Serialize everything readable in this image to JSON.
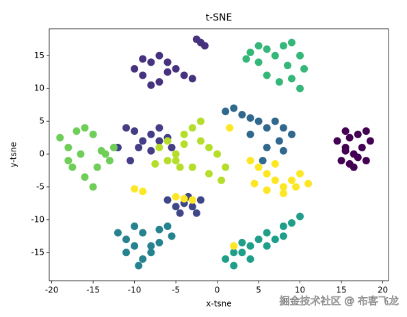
{
  "chart_data": {
    "type": "scatter",
    "title": "t-SNE",
    "x_label": "x-tsne",
    "y_label": "y-tsne",
    "xlim": [
      -20.3,
      20.7
    ],
    "ylim": [
      -19.3,
      19.1
    ],
    "xticks": [
      -20,
      -15,
      -10,
      -5,
      0,
      5,
      10,
      15,
      20
    ],
    "yticks": [
      -15,
      -10,
      -5,
      0,
      5,
      10,
      15
    ],
    "series": [
      {
        "color": "#440154",
        "x": [
          14.5,
          15.5,
          16,
          17,
          18,
          18.5,
          15,
          16.5,
          17.5,
          15.5,
          16,
          17,
          18,
          16.5,
          15.5
        ],
        "y": [
          2,
          3.5,
          2.5,
          3,
          3.5,
          2,
          -1,
          0,
          1,
          0.5,
          -1.5,
          -0.5,
          -1,
          -2,
          1
        ]
      },
      {
        "color": "#46327e",
        "x": [
          -10,
          -9,
          -8,
          -7,
          -6,
          -5,
          -4,
          -3,
          -9,
          -8,
          -7,
          -6,
          -2.5,
          -2,
          -1.5
        ],
        "y": [
          13,
          14.5,
          14,
          15,
          14,
          13,
          12,
          11.5,
          12,
          10.5,
          11,
          12.5,
          17.5,
          17,
          16.5
        ]
      },
      {
        "color": "#433e85",
        "x": [
          -11,
          -10,
          -9,
          -8,
          -7,
          -6,
          -5.5,
          -9.5,
          -8,
          -7,
          -12,
          -10.5
        ],
        "y": [
          4,
          3.5,
          2,
          3,
          4,
          2.5,
          1,
          1,
          0.5,
          2,
          1,
          -1
        ]
      },
      {
        "color": "#3f4788",
        "x": [
          -6,
          -5,
          -4,
          -3,
          -2,
          -4.5,
          -3.5,
          -2.5
        ],
        "y": [
          -7,
          -8,
          -7.5,
          -8,
          -7,
          -9,
          -6.5,
          -9
        ]
      },
      {
        "color": "#31688e",
        "x": [
          1,
          2,
          3,
          4,
          5,
          6,
          7,
          8,
          9,
          4,
          6,
          8,
          5.5,
          7.5
        ],
        "y": [
          6.5,
          7,
          6,
          5.5,
          5,
          4,
          5,
          4,
          3,
          3,
          1,
          0.5,
          -1,
          2
        ]
      },
      {
        "color": "#26828e",
        "x": [
          -12,
          -11,
          -10,
          -9,
          -8,
          -7,
          -6,
          -5.5,
          -11,
          -9,
          -8,
          -10,
          -7,
          -9.5
        ],
        "y": [
          -12,
          -13,
          -11,
          -12,
          -14,
          -11.5,
          -11,
          -12.5,
          -15,
          -16,
          -15,
          -14,
          -13.5,
          -17
        ]
      },
      {
        "color": "#1f9e89",
        "x": [
          1,
          2,
          3,
          4,
          5,
          6,
          7,
          8,
          9,
          10,
          2,
          4,
          6,
          8,
          3
        ],
        "y": [
          -16,
          -17,
          -15,
          -14,
          -13,
          -12,
          -13,
          -11,
          -10.5,
          -9.5,
          -15,
          -16,
          -14,
          -12.5,
          -13.5
        ]
      },
      {
        "color": "#35b779",
        "x": [
          3.5,
          4,
          5,
          6,
          7,
          8,
          9,
          10,
          10.5,
          6,
          7.5,
          9,
          5,
          8.5,
          10
        ],
        "y": [
          14.5,
          15.5,
          16.5,
          16,
          15,
          16.5,
          17,
          15,
          13,
          12,
          11,
          11.5,
          14,
          13.5,
          10
        ]
      },
      {
        "color": "#6ece58",
        "x": [
          -19,
          -18,
          -17,
          -16,
          -15,
          -14,
          -13,
          -17.5,
          -16,
          -14.5,
          -13.5,
          -18,
          -16.5,
          -15,
          -12.5
        ],
        "y": [
          2.5,
          1,
          3.5,
          4,
          3,
          0.5,
          -1,
          -2,
          -3.5,
          -2,
          0,
          -1,
          0,
          -5,
          1
        ]
      },
      {
        "color": "#b5de2b",
        "x": [
          -7,
          -6,
          -5,
          -4,
          -3,
          -2,
          -1,
          0,
          1,
          -5,
          -3,
          -1,
          0.5,
          -2,
          -4,
          -6,
          -7.5,
          -4.5
        ],
        "y": [
          1,
          2,
          0,
          3,
          4,
          2,
          1,
          0,
          -2,
          -1,
          -2,
          -3,
          -4,
          5,
          1.5,
          -1,
          -1.5,
          -2
        ]
      },
      {
        "color": "#fde725",
        "x": [
          4,
          5,
          6,
          7,
          8,
          9,
          10,
          4.5,
          6,
          8,
          9.5,
          11,
          7,
          -3,
          -4,
          -5,
          -10,
          -9,
          2,
          1.5
        ],
        "y": [
          -1,
          -2,
          -3,
          -4,
          -5,
          -4,
          -3,
          -4.5,
          -5.5,
          -6,
          -5,
          -4.5,
          -1.5,
          -7,
          -6.8,
          -6.5,
          -5.3,
          -5.7,
          -14,
          4
        ]
      }
    ]
  },
  "watermark": "掘金技术社区 @ 布客飞龙"
}
